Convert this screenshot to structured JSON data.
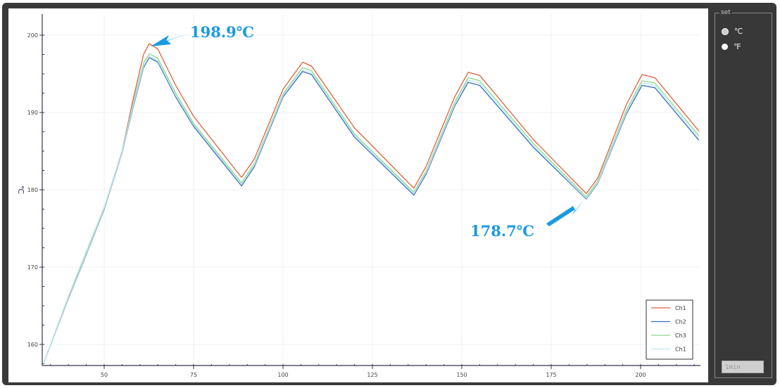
{
  "chart_data": {
    "type": "line",
    "ylabel": "℃",
    "xlim": [
      32.7,
      216.7
    ],
    "ylim": [
      157.5,
      201
    ],
    "xticks": [
      50,
      75,
      100,
      125,
      150,
      175,
      200
    ],
    "yticks": [
      160,
      170,
      180,
      190,
      200
    ],
    "grid": true,
    "legend_placement": "bottom-right",
    "series": [
      {
        "name": "Ch1",
        "color": "#e0603a",
        "points": [
          [
            33,
            157.5
          ],
          [
            40,
            166
          ],
          [
            44,
            170.5
          ],
          [
            50,
            177.5
          ],
          [
            55,
            185
          ],
          [
            58,
            191.5
          ],
          [
            61,
            197.5
          ],
          [
            62.6,
            198.9
          ],
          [
            65,
            198.2
          ],
          [
            70,
            193.5
          ],
          [
            75,
            189.5
          ],
          [
            88.4,
            181.6
          ],
          [
            92,
            184
          ],
          [
            100,
            193
          ],
          [
            105.5,
            196.5
          ],
          [
            108,
            196
          ],
          [
            120,
            188
          ],
          [
            136.6,
            180.2
          ],
          [
            140,
            183
          ],
          [
            148,
            192
          ],
          [
            151.8,
            195.2
          ],
          [
            155,
            194.8
          ],
          [
            170,
            186.5
          ],
          [
            184.8,
            179.5
          ],
          [
            188,
            181.5
          ],
          [
            196,
            191
          ],
          [
            200.4,
            194.9
          ],
          [
            204,
            194.5
          ],
          [
            216.3,
            187.6
          ]
        ]
      },
      {
        "name": "Ch2",
        "color": "#3a6fc0",
        "points": [
          [
            33,
            157.5
          ],
          [
            40,
            166
          ],
          [
            44,
            170.5
          ],
          [
            50,
            177.5
          ],
          [
            55,
            184.8
          ],
          [
            58,
            190.5
          ],
          [
            61,
            195.8
          ],
          [
            62.6,
            197.1
          ],
          [
            65,
            196.5
          ],
          [
            70,
            192
          ],
          [
            75,
            188.2
          ],
          [
            88.4,
            180.5
          ],
          [
            92,
            183
          ],
          [
            100,
            192
          ],
          [
            105.5,
            195.3
          ],
          [
            108,
            194.9
          ],
          [
            120,
            186.8
          ],
          [
            136.6,
            179.3
          ],
          [
            140,
            182
          ],
          [
            148,
            190.8
          ],
          [
            151.8,
            193.9
          ],
          [
            155,
            193.5
          ],
          [
            170,
            185.5
          ],
          [
            184.8,
            178.8
          ],
          [
            188,
            180.8
          ],
          [
            196,
            189.8
          ],
          [
            200.4,
            193.5
          ],
          [
            204,
            193.2
          ],
          [
            216.3,
            186.4
          ]
        ]
      },
      {
        "name": "Ch3",
        "color": "#8fd88f",
        "points": [
          [
            33,
            157.5
          ],
          [
            40,
            166.2
          ],
          [
            44,
            170.8
          ],
          [
            50,
            177.7
          ],
          [
            55,
            185
          ],
          [
            58,
            191
          ],
          [
            61,
            196.4
          ],
          [
            62.6,
            197.6
          ],
          [
            65,
            197
          ],
          [
            70,
            192.5
          ],
          [
            75,
            188.6
          ],
          [
            88.4,
            180.9
          ],
          [
            92,
            183.4
          ],
          [
            100,
            192.4
          ],
          [
            105.5,
            195.8
          ],
          [
            108,
            195.4
          ],
          [
            120,
            187.2
          ],
          [
            136.6,
            179.7
          ],
          [
            140,
            182.4
          ],
          [
            148,
            191.3
          ],
          [
            151.8,
            194.5
          ],
          [
            155,
            194.1
          ],
          [
            170,
            186
          ],
          [
            184.8,
            179.1
          ],
          [
            188,
            181.1
          ],
          [
            196,
            190.3
          ],
          [
            200.4,
            194.1
          ],
          [
            204,
            193.8
          ],
          [
            216.3,
            187
          ]
        ]
      },
      {
        "name": "Ch1",
        "color": "#bfe6f0",
        "points": [
          [
            33,
            157.5
          ],
          [
            40,
            166.1
          ],
          [
            44,
            170.6
          ],
          [
            50,
            177.6
          ],
          [
            55,
            184.9
          ],
          [
            58,
            190.7
          ],
          [
            61,
            196
          ],
          [
            62.6,
            197.3
          ],
          [
            65,
            196.7
          ],
          [
            70,
            192.2
          ],
          [
            75,
            188.4
          ],
          [
            88.4,
            180.7
          ],
          [
            92,
            183.2
          ],
          [
            100,
            192.2
          ],
          [
            105.5,
            195.5
          ],
          [
            108,
            195.1
          ],
          [
            120,
            187
          ],
          [
            136.6,
            179.5
          ],
          [
            140,
            182.2
          ],
          [
            148,
            191
          ],
          [
            151.8,
            194.2
          ],
          [
            155,
            193.8
          ],
          [
            170,
            185.7
          ],
          [
            184.8,
            178.9
          ],
          [
            188,
            180.9
          ],
          [
            196,
            190
          ],
          [
            200.4,
            193.8
          ],
          [
            204,
            193.5
          ],
          [
            216.3,
            186.7
          ]
        ]
      }
    ],
    "annotations": [
      {
        "text": "198.9℃",
        "x": 62.6,
        "y": 198.9
      },
      {
        "text": "178.7℃",
        "x": 184.8,
        "y": 178.8
      }
    ]
  },
  "side": {
    "group_label": "set",
    "radio_c": "℃",
    "radio_f": "℉",
    "selected": "℃",
    "button": "1min"
  }
}
